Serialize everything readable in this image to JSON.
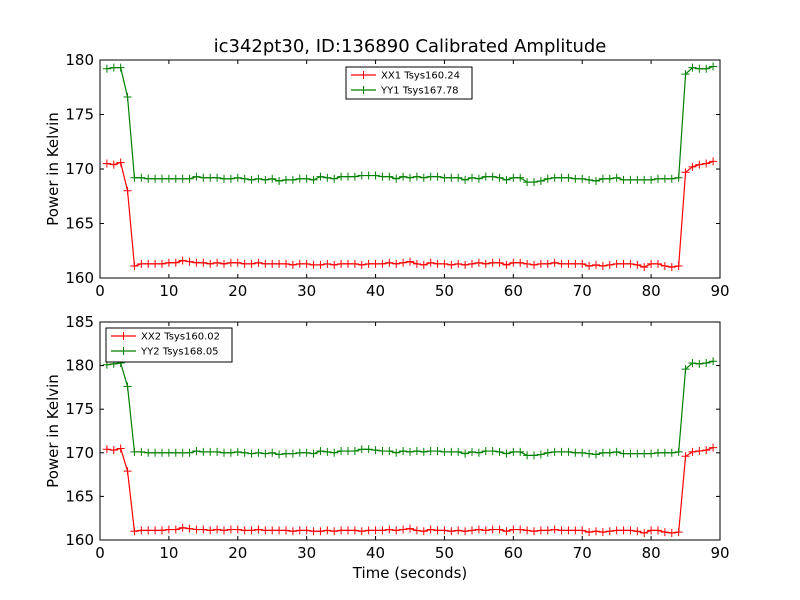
{
  "chart_data": [
    {
      "type": "line",
      "title": "ic342pt30, ID:136890 Calibrated Amplitude",
      "xlabel": "",
      "ylabel": "Power in Kelvin",
      "xlim": [
        0,
        90
      ],
      "ylim": [
        160,
        180
      ],
      "xticks": [
        0,
        10,
        20,
        30,
        40,
        50,
        60,
        70,
        80,
        90
      ],
      "yticks": [
        160,
        165,
        170,
        175,
        180
      ],
      "grid": false,
      "legend_position": "top-center",
      "x": [
        1,
        2,
        3,
        4,
        5,
        6,
        7,
        8,
        9,
        10,
        11,
        12,
        13,
        14,
        15,
        16,
        17,
        18,
        19,
        20,
        21,
        22,
        23,
        24,
        25,
        26,
        27,
        28,
        29,
        30,
        31,
        32,
        33,
        34,
        35,
        36,
        37,
        38,
        39,
        40,
        41,
        42,
        43,
        44,
        45,
        46,
        47,
        48,
        49,
        50,
        51,
        52,
        53,
        54,
        55,
        56,
        57,
        58,
        59,
        60,
        61,
        62,
        63,
        64,
        65,
        66,
        67,
        68,
        69,
        70,
        71,
        72,
        73,
        74,
        75,
        76,
        77,
        78,
        79,
        80,
        81,
        82,
        83,
        84,
        85,
        86,
        87,
        88,
        89
      ],
      "series": [
        {
          "name": "XX1 Tsys160.24",
          "color": "#ff0000",
          "values": [
            170.5,
            170.4,
            170.6,
            168,
            161.1,
            161.3,
            161.3,
            161.3,
            161.3,
            161.4,
            161.4,
            161.6,
            161.5,
            161.4,
            161.4,
            161.3,
            161.4,
            161.3,
            161.4,
            161.4,
            161.3,
            161.3,
            161.4,
            161.3,
            161.3,
            161.3,
            161.3,
            161.2,
            161.3,
            161.3,
            161.2,
            161.2,
            161.3,
            161.2,
            161.3,
            161.3,
            161.3,
            161.2,
            161.3,
            161.3,
            161.3,
            161.4,
            161.3,
            161.4,
            161.5,
            161.3,
            161.2,
            161.4,
            161.3,
            161.3,
            161.2,
            161.3,
            161.2,
            161.3,
            161.4,
            161.3,
            161.4,
            161.4,
            161.2,
            161.4,
            161.4,
            161.3,
            161.2,
            161.3,
            161.3,
            161.4,
            161.3,
            161.3,
            161.3,
            161.3,
            161.1,
            161.2,
            161.1,
            161.2,
            161.3,
            161.3,
            161.3,
            161.2,
            161,
            161.3,
            161.3,
            161.1,
            161,
            161.1,
            169.7,
            170.2,
            170.4,
            170.5,
            170.7
          ]
        },
        {
          "name": "YY1 Tsys167.78",
          "color": "#008000",
          "values": [
            179.2,
            179.3,
            179.3,
            176.6,
            169.2,
            169.2,
            169.1,
            169.1,
            169.1,
            169.1,
            169.1,
            169.1,
            169.1,
            169.3,
            169.2,
            169.2,
            169.2,
            169.1,
            169.1,
            169.2,
            169.1,
            169,
            169.1,
            169,
            169.1,
            168.9,
            169,
            169,
            169.1,
            169.1,
            169,
            169.3,
            169.2,
            169.1,
            169.3,
            169.3,
            169.3,
            169.4,
            169.4,
            169.4,
            169.3,
            169.3,
            169.1,
            169.3,
            169.2,
            169.3,
            169.2,
            169.3,
            169.3,
            169.2,
            169.2,
            169.2,
            169,
            169.2,
            169.1,
            169.3,
            169.3,
            169.2,
            169,
            169.2,
            169.2,
            168.8,
            168.8,
            168.9,
            169.1,
            169.2,
            169.2,
            169.2,
            169.1,
            169.1,
            169,
            168.9,
            169.1,
            169.1,
            169.2,
            169,
            169,
            169,
            169,
            169,
            169.1,
            169.1,
            169.1,
            169.2,
            178.7,
            179.3,
            179.2,
            179.2,
            179.4
          ]
        }
      ]
    },
    {
      "type": "line",
      "title": "",
      "xlabel": "Time (seconds)",
      "ylabel": "Power in Kelvin",
      "xlim": [
        0,
        90
      ],
      "ylim": [
        160,
        185
      ],
      "xticks": [
        0,
        10,
        20,
        30,
        40,
        50,
        60,
        70,
        80,
        90
      ],
      "yticks": [
        160,
        165,
        170,
        175,
        180,
        185
      ],
      "grid": false,
      "legend_position": "top-left",
      "x": [
        1,
        2,
        3,
        4,
        5,
        6,
        7,
        8,
        9,
        10,
        11,
        12,
        13,
        14,
        15,
        16,
        17,
        18,
        19,
        20,
        21,
        22,
        23,
        24,
        25,
        26,
        27,
        28,
        29,
        30,
        31,
        32,
        33,
        34,
        35,
        36,
        37,
        38,
        39,
        40,
        41,
        42,
        43,
        44,
        45,
        46,
        47,
        48,
        49,
        50,
        51,
        52,
        53,
        54,
        55,
        56,
        57,
        58,
        59,
        60,
        61,
        62,
        63,
        64,
        65,
        66,
        67,
        68,
        69,
        70,
        71,
        72,
        73,
        74,
        75,
        76,
        77,
        78,
        79,
        80,
        81,
        82,
        83,
        84,
        85,
        86,
        87,
        88,
        89
      ],
      "series": [
        {
          "name": "XX2 Tsys160.02",
          "color": "#ff0000",
          "values": [
            170.4,
            170.3,
            170.5,
            167.9,
            161,
            161.1,
            161.1,
            161.1,
            161.1,
            161.2,
            161.2,
            161.4,
            161.3,
            161.2,
            161.2,
            161.1,
            161.2,
            161.1,
            161.2,
            161.2,
            161.1,
            161.1,
            161.2,
            161.1,
            161.1,
            161.1,
            161.1,
            161,
            161.1,
            161.1,
            161,
            161,
            161.1,
            161,
            161.1,
            161.1,
            161.1,
            161,
            161.1,
            161.1,
            161.1,
            161.2,
            161.1,
            161.2,
            161.3,
            161.1,
            161,
            161.2,
            161.1,
            161.1,
            161,
            161.1,
            161,
            161.1,
            161.2,
            161.1,
            161.2,
            161.2,
            161,
            161.2,
            161.2,
            161.1,
            161,
            161.1,
            161.1,
            161.2,
            161.1,
            161.1,
            161.1,
            161.1,
            160.9,
            161,
            160.9,
            161,
            161.1,
            161.1,
            161.1,
            161,
            160.8,
            161.1,
            161.1,
            160.9,
            160.8,
            160.9,
            169.6,
            170.1,
            170.2,
            170.3,
            170.6
          ]
        },
        {
          "name": "YY2 Tsys168.05",
          "color": "#008000",
          "values": [
            180.1,
            180.2,
            180.3,
            177.6,
            170.1,
            170.1,
            170,
            170,
            170,
            170,
            170,
            170,
            170,
            170.2,
            170.1,
            170.1,
            170.1,
            170,
            170,
            170.1,
            170,
            169.9,
            170,
            169.9,
            170,
            169.8,
            169.9,
            169.9,
            170,
            170,
            169.9,
            170.2,
            170.1,
            170,
            170.2,
            170.2,
            170.2,
            170.4,
            170.4,
            170.3,
            170.2,
            170.2,
            170,
            170.2,
            170.1,
            170.2,
            170.1,
            170.2,
            170.2,
            170.1,
            170.1,
            170.1,
            169.9,
            170.1,
            170,
            170.2,
            170.2,
            170.1,
            169.9,
            170.1,
            170.1,
            169.7,
            169.7,
            169.8,
            170,
            170.1,
            170.1,
            170.1,
            170,
            170,
            169.9,
            169.8,
            170,
            170,
            170.1,
            169.9,
            169.9,
            169.9,
            169.9,
            169.9,
            170,
            170,
            170,
            170.1,
            179.6,
            180.3,
            180.2,
            180.3,
            180.5
          ]
        }
      ]
    }
  ]
}
